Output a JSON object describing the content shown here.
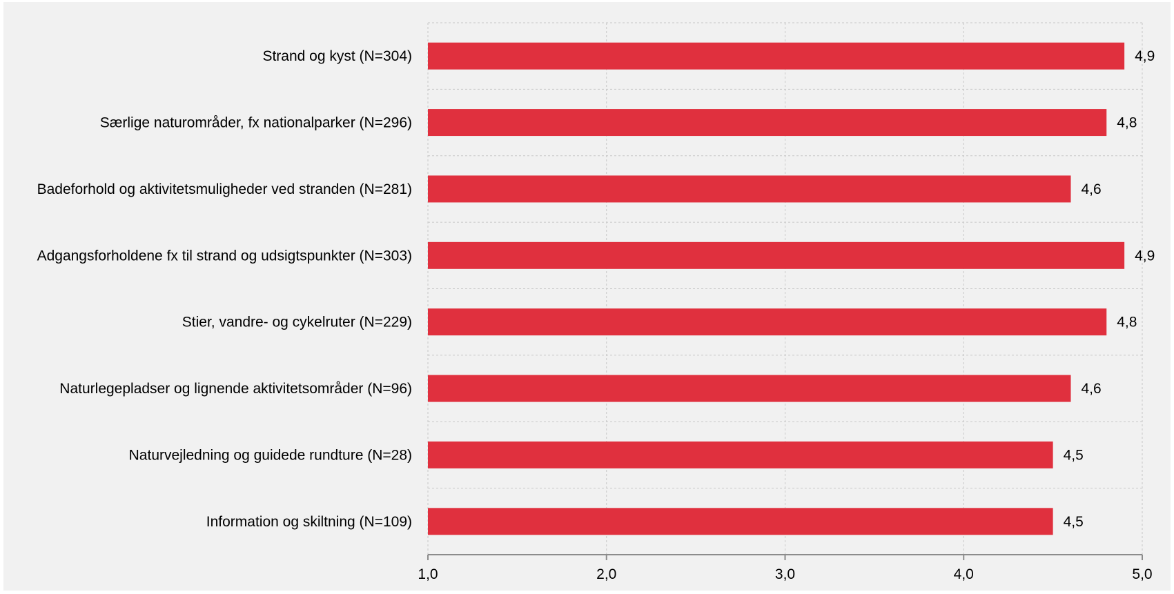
{
  "chart_data": {
    "type": "bar",
    "orientation": "horizontal",
    "categories": [
      "Strand og kyst (N=304)",
      "Særlige naturområder, fx nationalparker (N=296)",
      "Badeforhold og aktivitetsmuligheder ved stranden (N=281)",
      "Adgangsforholdene fx til strand og udsigtspunkter (N=303)",
      "Stier, vandre- og cykelruter (N=229)",
      "Naturlegepladser og lignende aktivitetsområder (N=96)",
      "Naturvejledning og guidede rundture (N=28)",
      "Information og skiltning (N=109)"
    ],
    "values": [
      4.9,
      4.8,
      4.6,
      4.9,
      4.8,
      4.6,
      4.5,
      4.5
    ],
    "value_labels": [
      "4,9",
      "4,8",
      "4,6",
      "4,9",
      "4,8",
      "4,6",
      "4,5",
      "4,5"
    ],
    "xlim": [
      1.0,
      5.0
    ],
    "x_ticks": [
      1.0,
      2.0,
      3.0,
      4.0,
      5.0
    ],
    "x_tick_labels": [
      "1,0",
      "2,0",
      "3,0",
      "4,0",
      "5,0"
    ],
    "bar_color": "#e0303e",
    "background_color": "#f1f1f1",
    "grid": true,
    "legend": false
  }
}
